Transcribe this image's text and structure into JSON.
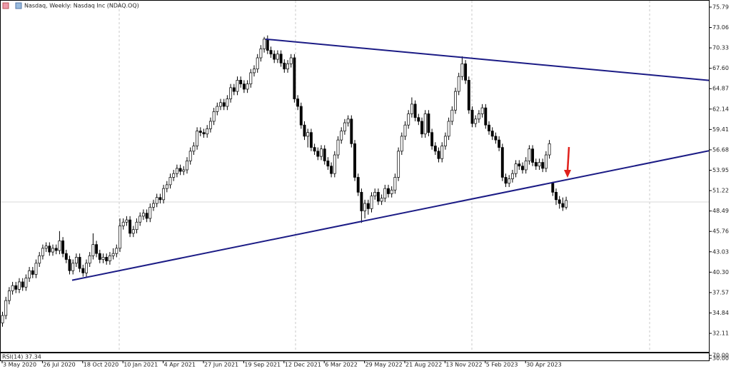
{
  "chart_data": {
    "type": "candlestick",
    "title": "Nasdaq, Weekly:  Nasdaq Inc (NDAQ.OQ)",
    "ylim": [
      29.63,
      76.74
    ],
    "yticks": [
      75.79,
      73.06,
      70.33,
      {
        "value": 67.6,
        "label": "67.60"
      },
      64.87,
      62.14,
      59.41,
      56.68,
      53.95,
      51.22,
      48.49,
      45.76,
      43.03,
      {
        "value": 40.3,
        "label": "40.30"
      },
      37.57,
      34.84,
      32.11
    ],
    "xlim": [
      -0.64,
      210.64
    ],
    "xticks": [
      {
        "value": 0,
        "label": "3 May 2020"
      },
      {
        "value": 12,
        "label": "26 Jul 2020"
      },
      {
        "value": 24,
        "label": "18 Oct 2020"
      },
      {
        "value": 36,
        "label": "10 Jan 2021"
      },
      {
        "value": 48,
        "label": "4 Apr 2021"
      },
      {
        "value": 60,
        "label": "27 Jun 2021"
      },
      {
        "value": 72,
        "label": "19 Sep 2021"
      },
      {
        "value": 84,
        "label": "12 Dec 2021"
      },
      {
        "value": 96,
        "label": "6 Mar 2022"
      },
      {
        "value": 108,
        "label": "29 May 2022"
      },
      {
        "value": 120,
        "label": "21 Aug 2022"
      },
      {
        "value": 132,
        "label": "13 Nov 2022"
      },
      {
        "value": 144,
        "label": "5 Feb 2023"
      },
      {
        "value": 156,
        "label": "30 Apr 2023"
      }
    ],
    "up_color": "#ffffff",
    "down_color": "#000000",
    "ohlc": [
      [
        33.5,
        35.0,
        33.0,
        34.5
      ],
      [
        34.5,
        37.0,
        34.0,
        36.5
      ],
      [
        36.5,
        38.3,
        36.0,
        37.8
      ],
      [
        37.8,
        39.0,
        37.3,
        38.5
      ],
      [
        38.5,
        39.0,
        37.5,
        38.0
      ],
      [
        38.0,
        39.5,
        37.5,
        39.0
      ],
      [
        39.0,
        39.5,
        37.8,
        38.3
      ],
      [
        38.3,
        40.0,
        37.8,
        39.5
      ],
      [
        39.5,
        41.0,
        39.0,
        40.5
      ],
      [
        40.5,
        41.0,
        39.5,
        40.0
      ],
      [
        40.0,
        42.0,
        39.5,
        41.5
      ],
      [
        41.5,
        43.0,
        41.0,
        42.5
      ],
      [
        42.5,
        44.0,
        42.0,
        43.5
      ],
      [
        43.5,
        44.3,
        43.0,
        43.8
      ],
      [
        43.8,
        44.3,
        42.5,
        43.0
      ],
      [
        43.0,
        44.0,
        42.5,
        43.5
      ],
      [
        43.5,
        44.0,
        42.7,
        43.2
      ],
      [
        43.2,
        45.8,
        42.7,
        44.5
      ],
      [
        44.5,
        45.0,
        42.3,
        42.8
      ],
      [
        42.8,
        43.3,
        41.5,
        42.0
      ],
      [
        42.0,
        42.5,
        40.0,
        40.5
      ],
      [
        40.5,
        42.0,
        40.0,
        41.5
      ],
      [
        41.5,
        42.8,
        41.0,
        42.3
      ],
      [
        42.3,
        42.8,
        40.3,
        40.8
      ],
      [
        40.8,
        41.3,
        39.7,
        40.2
      ],
      [
        40.2,
        42.0,
        39.7,
        41.5
      ],
      [
        41.5,
        43.0,
        41.0,
        42.5
      ],
      [
        42.5,
        45.5,
        42.0,
        44.0
      ],
      [
        44.0,
        44.5,
        42.3,
        42.8
      ],
      [
        42.8,
        43.3,
        41.5,
        42.0
      ],
      [
        42.0,
        42.8,
        41.5,
        42.3
      ],
      [
        42.3,
        42.8,
        41.3,
        41.8
      ],
      [
        41.8,
        43.0,
        41.3,
        42.5
      ],
      [
        42.5,
        43.5,
        42.0,
        42.8
      ],
      [
        42.8,
        44.0,
        42.3,
        43.5
      ],
      [
        43.5,
        47.5,
        43.0,
        46.5
      ],
      [
        46.5,
        47.5,
        46.0,
        47.0
      ],
      [
        47.0,
        47.8,
        46.5,
        47.3
      ],
      [
        47.3,
        47.8,
        45.0,
        45.5
      ],
      [
        45.5,
        46.5,
        45.0,
        46.0
      ],
      [
        46.0,
        47.5,
        45.5,
        47.0
      ],
      [
        47.0,
        48.3,
        46.5,
        47.8
      ],
      [
        47.8,
        48.7,
        47.3,
        48.2
      ],
      [
        48.2,
        48.7,
        47.0,
        47.5
      ],
      [
        47.5,
        49.5,
        47.0,
        49.0
      ],
      [
        49.0,
        50.0,
        48.5,
        49.5
      ],
      [
        49.5,
        50.8,
        49.0,
        50.3
      ],
      [
        50.3,
        50.8,
        49.5,
        50.0
      ],
      [
        50.0,
        52.0,
        49.5,
        51.5
      ],
      [
        51.5,
        52.5,
        51.0,
        52.0
      ],
      [
        52.0,
        53.5,
        51.5,
        53.0
      ],
      [
        53.0,
        54.0,
        52.5,
        53.5
      ],
      [
        53.5,
        54.7,
        53.0,
        54.2
      ],
      [
        54.2,
        54.7,
        53.3,
        53.8
      ],
      [
        53.8,
        54.5,
        53.3,
        54.0
      ],
      [
        54.0,
        55.7,
        53.5,
        55.2
      ],
      [
        55.2,
        57.0,
        54.7,
        56.5
      ],
      [
        56.5,
        57.7,
        56.0,
        57.2
      ],
      [
        57.2,
        59.7,
        56.7,
        59.2
      ],
      [
        59.2,
        59.7,
        58.5,
        59.0
      ],
      [
        59.0,
        59.5,
        58.3,
        58.8
      ],
      [
        58.8,
        60.0,
        58.3,
        59.5
      ],
      [
        59.5,
        61.0,
        59.0,
        60.5
      ],
      [
        60.5,
        62.3,
        60.0,
        61.8
      ],
      [
        61.8,
        63.0,
        61.3,
        62.5
      ],
      [
        62.5,
        63.5,
        62.0,
        63.0
      ],
      [
        63.0,
        63.5,
        62.0,
        62.5
      ],
      [
        62.5,
        64.0,
        62.0,
        63.5
      ],
      [
        63.5,
        65.5,
        63.0,
        65.0
      ],
      [
        65.0,
        65.5,
        64.0,
        64.5
      ],
      [
        64.5,
        66.5,
        64.0,
        66.0
      ],
      [
        66.0,
        66.5,
        65.0,
        65.5
      ],
      [
        65.5,
        66.0,
        64.3,
        64.8
      ],
      [
        64.8,
        66.0,
        64.3,
        65.5
      ],
      [
        65.5,
        67.5,
        65.0,
        67.0
      ],
      [
        67.0,
        68.0,
        66.5,
        67.5
      ],
      [
        67.5,
        69.5,
        67.0,
        69.0
      ],
      [
        69.0,
        70.7,
        68.5,
        70.2
      ],
      [
        70.2,
        71.8,
        69.7,
        71.5
      ],
      [
        71.5,
        72.0,
        69.5,
        70.0
      ],
      [
        70.0,
        70.5,
        69.0,
        69.5
      ],
      [
        69.5,
        70.0,
        68.3,
        68.8
      ],
      [
        68.8,
        70.0,
        68.3,
        69.5
      ],
      [
        69.5,
        70.0,
        67.8,
        68.3
      ],
      [
        68.3,
        68.8,
        67.0,
        67.5
      ],
      [
        67.5,
        68.7,
        67.0,
        68.2
      ],
      [
        68.2,
        69.5,
        67.7,
        69.0
      ],
      [
        69.0,
        69.5,
        63.0,
        63.5
      ],
      [
        63.5,
        64.0,
        62.0,
        62.5
      ],
      [
        62.5,
        63.0,
        59.5,
        60.0
      ],
      [
        60.0,
        60.5,
        58.0,
        58.5
      ],
      [
        58.5,
        59.5,
        57.0,
        59.0
      ],
      [
        59.0,
        59.5,
        56.5,
        57.0
      ],
      [
        57.0,
        57.5,
        56.0,
        56.5
      ],
      [
        56.5,
        57.0,
        55.3,
        55.8
      ],
      [
        55.8,
        57.3,
        55.3,
        56.8
      ],
      [
        56.8,
        57.3,
        54.7,
        55.2
      ],
      [
        55.2,
        55.7,
        54.0,
        54.5
      ],
      [
        54.5,
        55.0,
        53.0,
        53.5
      ],
      [
        53.5,
        56.5,
        53.0,
        56.0
      ],
      [
        56.0,
        58.5,
        55.5,
        58.0
      ],
      [
        58.0,
        59.7,
        57.5,
        59.2
      ],
      [
        59.2,
        60.8,
        58.7,
        60.3
      ],
      [
        60.3,
        61.3,
        59.8,
        60.8
      ],
      [
        60.8,
        61.3,
        57.0,
        57.5
      ],
      [
        57.5,
        58.0,
        52.5,
        53.0
      ],
      [
        53.0,
        53.5,
        50.5,
        51.0
      ],
      [
        51.0,
        51.5,
        46.9,
        48.5
      ],
      [
        48.5,
        50.0,
        47.5,
        49.5
      ],
      [
        49.5,
        50.0,
        48.0,
        48.8
      ],
      [
        48.8,
        51.0,
        48.3,
        50.5
      ],
      [
        50.5,
        51.5,
        50.0,
        51.0
      ],
      [
        51.0,
        51.5,
        49.3,
        49.8
      ],
      [
        49.8,
        50.7,
        49.3,
        50.2
      ],
      [
        50.2,
        52.0,
        49.7,
        51.5
      ],
      [
        51.5,
        52.0,
        50.3,
        50.8
      ],
      [
        50.8,
        51.8,
        50.3,
        51.3
      ],
      [
        51.3,
        53.5,
        50.8,
        53.0
      ],
      [
        53.0,
        57.0,
        52.5,
        56.5
      ],
      [
        56.5,
        59.0,
        56.0,
        58.5
      ],
      [
        58.5,
        60.5,
        58.0,
        60.0
      ],
      [
        60.0,
        62.0,
        59.5,
        61.5
      ],
      [
        61.5,
        63.7,
        61.0,
        62.8
      ],
      [
        62.8,
        63.3,
        60.5,
        61.0
      ],
      [
        61.0,
        61.5,
        60.0,
        60.5
      ],
      [
        60.5,
        61.0,
        58.3,
        58.8
      ],
      [
        58.8,
        62.0,
        58.3,
        61.5
      ],
      [
        61.5,
        62.0,
        58.5,
        59.0
      ],
      [
        59.0,
        59.5,
        56.7,
        57.2
      ],
      [
        57.2,
        57.7,
        56.0,
        56.5
      ],
      [
        56.5,
        57.0,
        55.0,
        55.5
      ],
      [
        55.5,
        57.7,
        55.0,
        57.2
      ],
      [
        57.2,
        59.0,
        56.7,
        58.5
      ],
      [
        58.5,
        61.0,
        58.0,
        60.5
      ],
      [
        60.5,
        62.5,
        60.0,
        62.0
      ],
      [
        62.0,
        65.0,
        61.5,
        64.5
      ],
      [
        64.5,
        67.0,
        64.0,
        66.5
      ],
      [
        66.5,
        69.2,
        66.0,
        68.2
      ],
      [
        68.2,
        68.7,
        65.5,
        66.0
      ],
      [
        66.0,
        66.5,
        61.5,
        62.0
      ],
      [
        62.0,
        62.5,
        59.7,
        60.2
      ],
      [
        60.2,
        61.3,
        59.7,
        60.8
      ],
      [
        60.8,
        62.0,
        60.3,
        61.5
      ],
      [
        61.5,
        62.8,
        61.0,
        62.3
      ],
      [
        62.3,
        62.8,
        59.5,
        60.0
      ],
      [
        60.0,
        60.5,
        58.7,
        59.2
      ],
      [
        59.2,
        59.7,
        58.0,
        58.5
      ],
      [
        58.5,
        59.0,
        57.5,
        58.0
      ],
      [
        58.0,
        58.5,
        56.5,
        57.0
      ],
      [
        57.0,
        57.5,
        52.5,
        53.0
      ],
      [
        53.0,
        53.5,
        51.7,
        52.2
      ],
      [
        52.2,
        53.3,
        51.7,
        52.8
      ],
      [
        52.8,
        54.0,
        52.3,
        53.5
      ],
      [
        53.5,
        55.3,
        53.0,
        54.8
      ],
      [
        54.8,
        55.3,
        54.0,
        54.5
      ],
      [
        54.5,
        55.0,
        53.5,
        54.0
      ],
      [
        54.0,
        55.7,
        53.5,
        55.2
      ],
      [
        55.2,
        57.3,
        54.7,
        56.8
      ],
      [
        56.8,
        57.3,
        54.5,
        55.0
      ],
      [
        55.0,
        55.5,
        54.0,
        54.5
      ],
      [
        54.5,
        55.5,
        54.0,
        55.0
      ],
      [
        55.0,
        55.5,
        53.7,
        54.2
      ],
      [
        54.2,
        56.5,
        53.7,
        56.0
      ],
      [
        56.0,
        58.0,
        55.5,
        57.5
      ],
      [
        52.2,
        52.4,
        50.5,
        51.0
      ],
      [
        51.0,
        51.5,
        49.3,
        50.0
      ],
      [
        50.0,
        50.5,
        48.8,
        49.5
      ],
      [
        49.5,
        50.3,
        48.5,
        49.0
      ],
      [
        49.0,
        50.4,
        48.7,
        49.9
      ]
    ],
    "trendlines": [
      {
        "color": "#1b1b85",
        "x": [
          78.5,
          210.64
        ],
        "y": [
          71.5,
          65.98
        ]
      },
      {
        "color": "#1b1b85",
        "x": [
          20.85,
          210.64
        ],
        "y": [
          39.22,
          56.55
        ]
      }
    ],
    "rsi_label": "RSI(14) 37.34",
    "rsi_ylim": [
      0,
      100
    ],
    "rsi_yticks": [
      {
        "value": 70,
        "label": "70.00"
      },
      {
        "value": 30,
        "label": "30.00"
      }
    ]
  }
}
